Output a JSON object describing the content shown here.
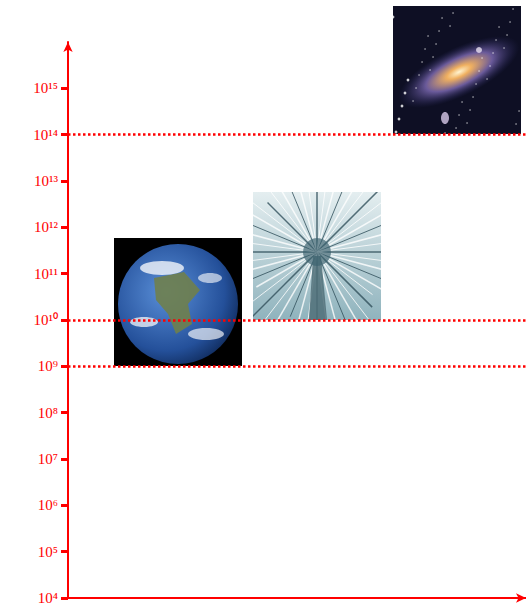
{
  "chart_data": {
    "type": "line",
    "log": "y",
    "ylim": [
      10000,
      1e+16
    ],
    "yticks": [
      {
        "value": 10000,
        "label": "10⁴"
      },
      {
        "value": 100000,
        "label": "10⁵"
      },
      {
        "value": 1000000,
        "label": "10⁶"
      },
      {
        "value": 10000000,
        "label": "10⁷"
      },
      {
        "value": 100000000,
        "label": "10⁸"
      },
      {
        "value": 1000000000,
        "label": "10⁹"
      },
      {
        "value": 10000000000,
        "label": "10¹⁰"
      },
      {
        "value": 100000000000,
        "label": "10¹¹"
      },
      {
        "value": 1000000000000,
        "label": "10¹²"
      },
      {
        "value": 10000000000000,
        "label": "10¹³"
      },
      {
        "value": 100000000000000,
        "label": "10¹⁴"
      },
      {
        "value": 1000000000000000,
        "label": "10¹⁵"
      }
    ],
    "hlines": [
      1000000000,
      10000000000,
      100000000000000
    ],
    "line_style": "dotted",
    "color": "#ff0000",
    "grid": false,
    "tick_labels": "y"
  }
}
